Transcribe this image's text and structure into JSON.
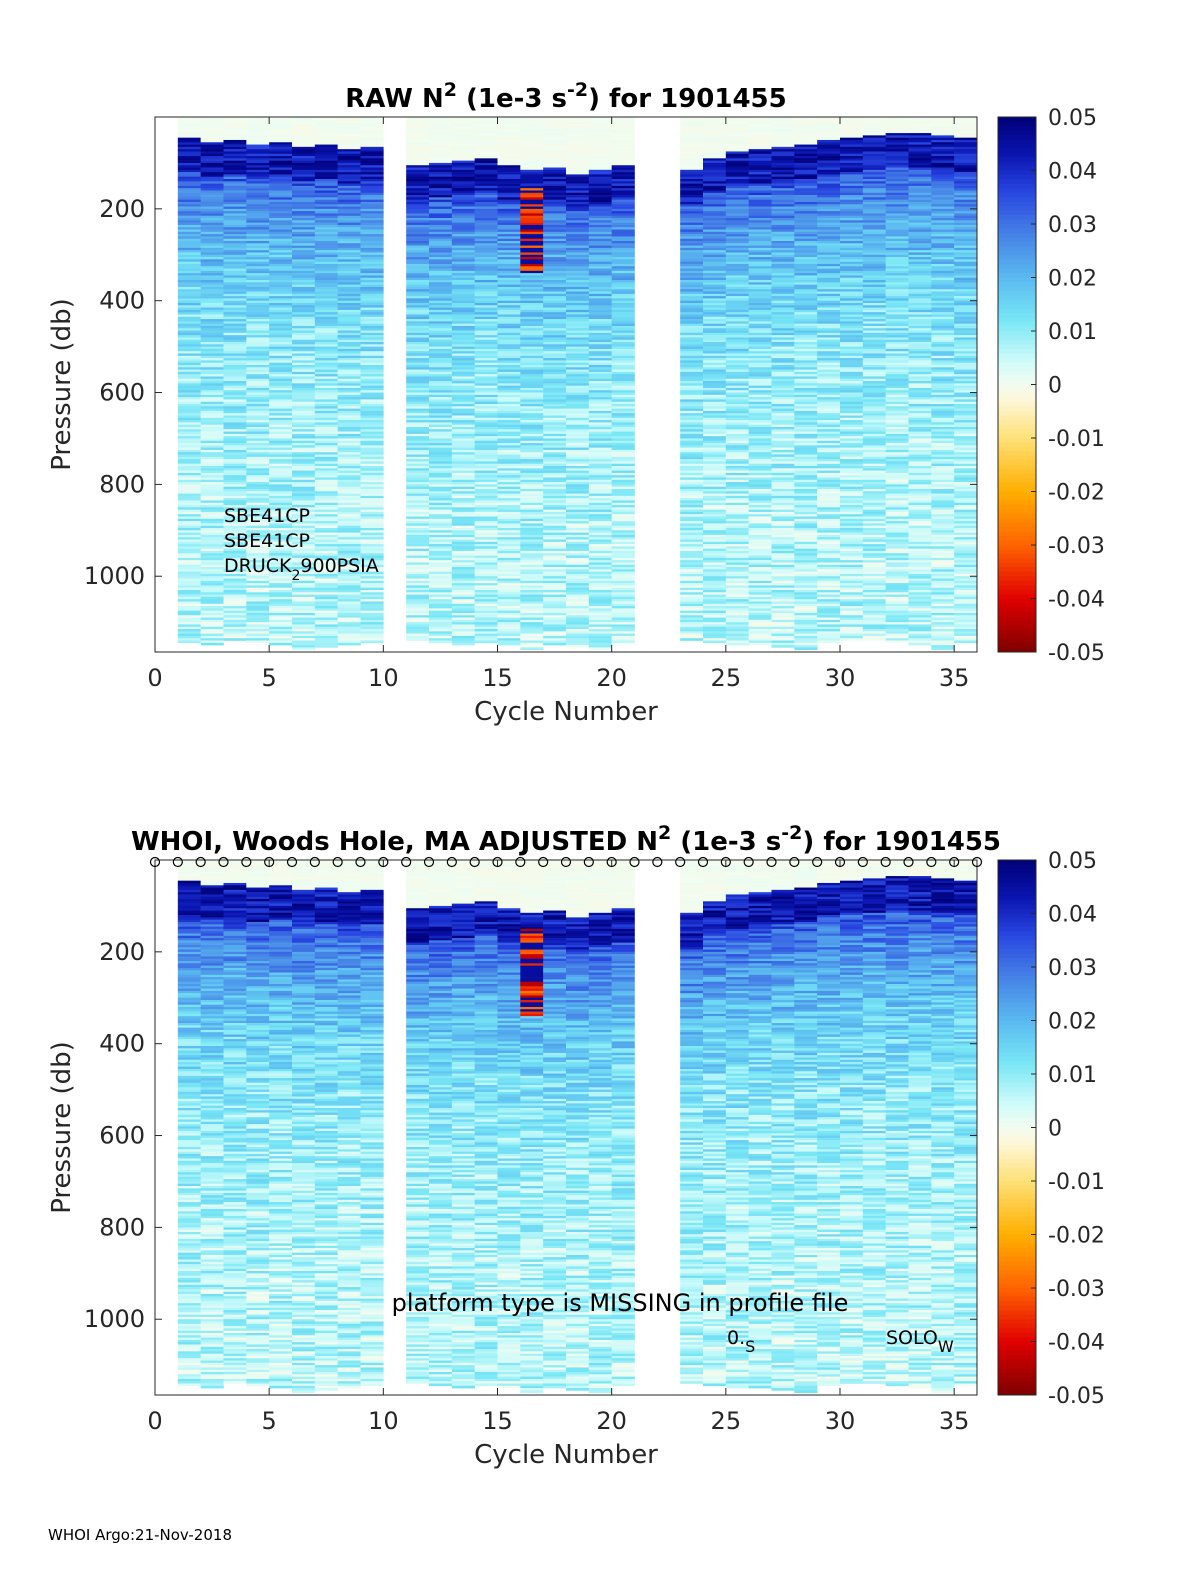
{
  "chart_data": [
    {
      "type": "heatmap",
      "panel_id": "raw",
      "title": {
        "prefix": "RAW N",
        "sup1": "2",
        "mid": " (1e-3 s",
        "sup2": "-2",
        "suffix": ") for 1901455"
      },
      "xlabel": "Cycle Number",
      "ylabel": "Pressure (db)",
      "xlim": [
        0,
        36
      ],
      "ylim": [
        1165,
        0
      ],
      "x_ticks": [
        0,
        5,
        10,
        15,
        20,
        25,
        30,
        35
      ],
      "y_ticks": [
        200,
        400,
        600,
        800,
        1000
      ],
      "colorbar": {
        "clim": [
          -0.05,
          0.05
        ],
        "ticks": [
          0.05,
          0.04,
          0.03,
          0.02,
          0.01,
          0,
          -0.01,
          -0.02,
          -0.03,
          -0.04,
          -0.05
        ]
      },
      "cycles_present": [
        1,
        2,
        3,
        4,
        5,
        6,
        7,
        8,
        9,
        11,
        12,
        13,
        14,
        15,
        16,
        17,
        18,
        19,
        20,
        23,
        24,
        25,
        26,
        27,
        28,
        29,
        30,
        31,
        32,
        33,
        34,
        35
      ],
      "gaps": [
        [
          10,
          11
        ],
        [
          21,
          23
        ]
      ],
      "mixed_layer_depth_db": [
        50,
        60,
        55,
        65,
        60,
        70,
        65,
        75,
        70,
        110,
        105,
        100,
        95,
        110,
        120,
        115,
        130,
        120,
        110,
        120,
        95,
        80,
        75,
        70,
        65,
        55,
        50,
        45,
        40,
        40,
        45,
        50
      ],
      "max_pressure_db": [
        1145,
        1150,
        1140,
        1145,
        1150,
        1160,
        1155,
        1150,
        1145,
        1140,
        1145,
        1150,
        1145,
        1150,
        1160,
        1150,
        1155,
        1160,
        1145,
        1140,
        1145,
        1150,
        1150,
        1155,
        1160,
        1145,
        1140,
        1140,
        1145,
        1150,
        1160,
        1145
      ],
      "negative_anomaly": {
        "cycle": 16,
        "pressure_range_db": [
          150,
          340
        ],
        "value": -0.045
      },
      "annotations": {
        "sensor_lines": [
          "SBE41CP",
          "SBE41CP"
        ],
        "druck_prefix": "DRUCK",
        "druck_sub": "2",
        "druck_suffix": "900PSIA"
      }
    },
    {
      "type": "heatmap",
      "panel_id": "adjusted",
      "title": {
        "prefix": "WHOI, Woods Hole, MA  ADJUSTED N",
        "sup1": "2",
        "mid": " (1e-3 s",
        "sup2": "-2",
        "suffix": ") for 1901455"
      },
      "xlabel": "Cycle Number",
      "ylabel": "Pressure (db)",
      "xlim": [
        0,
        36
      ],
      "ylim": [
        1165,
        0
      ],
      "x_ticks": [
        0,
        5,
        10,
        15,
        20,
        25,
        30,
        35
      ],
      "y_ticks": [
        200,
        400,
        600,
        800,
        1000
      ],
      "colorbar": {
        "clim": [
          -0.05,
          0.05
        ],
        "ticks": [
          0.05,
          0.04,
          0.03,
          0.02,
          0.01,
          0,
          -0.01,
          -0.02,
          -0.03,
          -0.04,
          -0.05
        ]
      },
      "cycles_present": [
        1,
        2,
        3,
        4,
        5,
        6,
        7,
        8,
        9,
        11,
        12,
        13,
        14,
        15,
        16,
        17,
        18,
        19,
        20,
        23,
        24,
        25,
        26,
        27,
        28,
        29,
        30,
        31,
        32,
        33,
        34,
        35
      ],
      "gaps": [
        [
          10,
          11
        ],
        [
          21,
          23
        ]
      ],
      "mixed_layer_depth_db": [
        50,
        60,
        55,
        65,
        60,
        70,
        65,
        75,
        70,
        110,
        105,
        100,
        95,
        110,
        120,
        115,
        130,
        120,
        110,
        120,
        95,
        80,
        75,
        70,
        65,
        55,
        50,
        45,
        40,
        40,
        45,
        50
      ],
      "max_pressure_db": [
        1145,
        1150,
        1140,
        1145,
        1150,
        1160,
        1155,
        1150,
        1145,
        1140,
        1145,
        1150,
        1145,
        1150,
        1160,
        1150,
        1155,
        1160,
        1145,
        1140,
        1145,
        1150,
        1150,
        1155,
        1160,
        1145,
        1140,
        1140,
        1145,
        1150,
        1160,
        1145
      ],
      "negative_anomaly": {
        "cycle": 16,
        "pressure_range_db": [
          150,
          340
        ],
        "value": -0.045
      },
      "qc_marker_symbol": "o",
      "qc_marker_cycles": [
        0,
        1,
        2,
        3,
        4,
        5,
        6,
        7,
        8,
        9,
        10,
        11,
        12,
        13,
        14,
        15,
        16,
        17,
        18,
        19,
        20,
        21,
        22,
        23,
        24,
        25,
        26,
        27,
        28,
        29,
        30,
        31,
        32,
        33,
        34,
        35,
        36
      ],
      "annotations": {
        "platform_text": "platform type is MISSING in profile file",
        "left_main": "0.",
        "left_sub": "S",
        "right_main": "SOLO",
        "right_sub": "W"
      }
    }
  ],
  "footer": "WHOI Argo:21-Nov-2018",
  "colors": {
    "text": "#262626",
    "axis": "#262626",
    "background": "#ffffff"
  }
}
